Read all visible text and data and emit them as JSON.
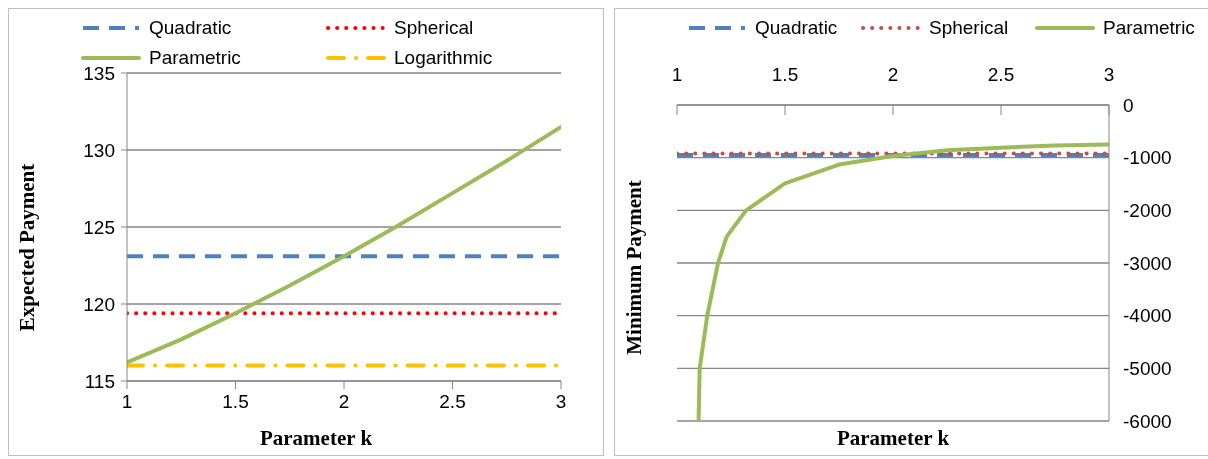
{
  "chart_data": [
    {
      "type": "line",
      "xlabel": "Parameter k",
      "ylabel": "Expected Payment",
      "xlim": [
        1,
        3
      ],
      "xticks": [
        1,
        1.5,
        2,
        2.5,
        3
      ],
      "ylim": [
        115,
        135
      ],
      "yticks": [
        115,
        120,
        125,
        130,
        135
      ],
      "grid": "y",
      "legend": "top",
      "marker": "none",
      "series": [
        {
          "name": "Quadratic",
          "color": "#4f81bd",
          "line_style": "dashed",
          "x": [
            1,
            3
          ],
          "values": [
            123.1,
            123.1
          ]
        },
        {
          "name": "Spherical",
          "color": "#ff0000",
          "line_style": "dotted",
          "x": [
            1,
            3
          ],
          "values": [
            119.4,
            119.4
          ]
        },
        {
          "name": "Parametric",
          "color": "#9bbb59",
          "line_style": "solid",
          "x": [
            1,
            1.25,
            1.5,
            1.75,
            2,
            2.25,
            2.5,
            2.75,
            3
          ],
          "values": [
            116.2,
            117.7,
            119.4,
            121.2,
            123.1,
            125.1,
            127.2,
            129.3,
            131.5
          ]
        },
        {
          "name": "Logarithmic",
          "color": "#ffc000",
          "line_style": "dashdot",
          "x": [
            1,
            3
          ],
          "values": [
            116.0,
            116.0
          ]
        }
      ]
    },
    {
      "type": "line",
      "xlabel": "Parameter k",
      "ylabel": "Minimum Payment",
      "xlim": [
        1,
        3
      ],
      "xticks": [
        1,
        1.5,
        2,
        2.5,
        3
      ],
      "ylim": [
        -6000,
        0
      ],
      "yticks": [
        -6000,
        -5000,
        -4000,
        -3000,
        -2000,
        -1000,
        0
      ],
      "grid": "y",
      "legend": "top",
      "marker": "none",
      "series": [
        {
          "name": "Quadratic",
          "color": "#4f81bd",
          "line_style": "dashed",
          "x": [
            1,
            3
          ],
          "values": [
            -950,
            -950
          ]
        },
        {
          "name": "Spherical",
          "color": "#c0504d",
          "line_style": "dotted",
          "x": [
            1,
            3
          ],
          "values": [
            -920,
            -920
          ]
        },
        {
          "name": "Parametric",
          "color": "#9bbb59",
          "line_style": "solid",
          "x": [
            1.1,
            1.105,
            1.14,
            1.19,
            1.23,
            1.32,
            1.5,
            1.75,
            2,
            2.25,
            2.5,
            2.75,
            3
          ],
          "values": [
            -6000,
            -5000,
            -4000,
            -3000,
            -2500,
            -2000,
            -1490,
            -1130,
            -970,
            -860,
            -810,
            -770,
            -750
          ]
        }
      ]
    }
  ]
}
